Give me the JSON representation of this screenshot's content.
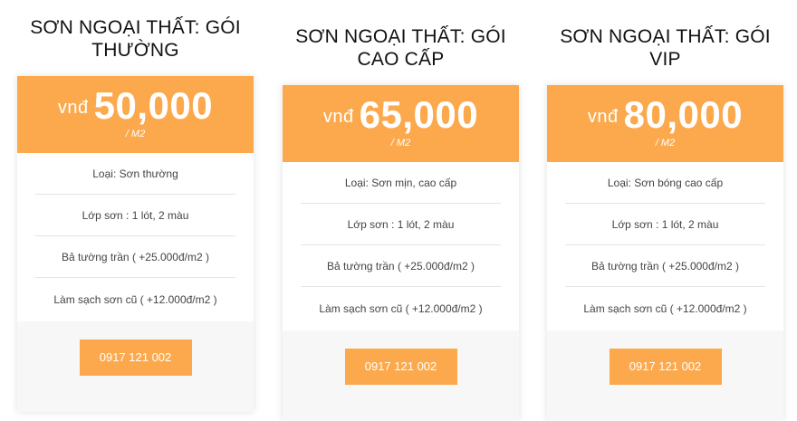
{
  "plans": [
    {
      "title": "SƠN NGOẠI THẤT: GÓI THƯỜNG",
      "currency": "vnđ",
      "price": "50,000",
      "unit": "/ M2",
      "features": [
        "Loại: Sơn thường",
        "Lớp sơn : 1 lót, 2 màu",
        "Bả tường trần ( +25.000đ/m2 )",
        "Làm sạch sơn cũ ( +12.000đ/m2 )"
      ],
      "button": "0917 121 002"
    },
    {
      "title": "SƠN NGOẠI THẤT: GÓI CAO CẤP",
      "currency": "vnđ",
      "price": "65,000",
      "unit": "/ M2",
      "features": [
        "Loại: Sơn mịn, cao cấp",
        "Lớp sơn : 1 lót, 2 màu",
        "Bả tường trần ( +25.000đ/m2 )",
        "Làm sạch sơn cũ ( +12.000đ/m2 )"
      ],
      "button": "0917 121 002"
    },
    {
      "title": "SƠN NGOẠI THẤT: GÓI VIP",
      "currency": "vnđ",
      "price": "80,000",
      "unit": "/ M2",
      "features": [
        "Loại: Sơn bóng cao cấp",
        "Lớp sơn : 1 lót, 2 màu",
        "Bả tường trần ( +25.000đ/m2 )",
        "Làm sạch sơn cũ ( +12.000đ/m2 )"
      ],
      "button": "0917 121 002"
    }
  ],
  "colors": {
    "accent": "#fca94d",
    "footer_bg": "#f7f7f7"
  }
}
